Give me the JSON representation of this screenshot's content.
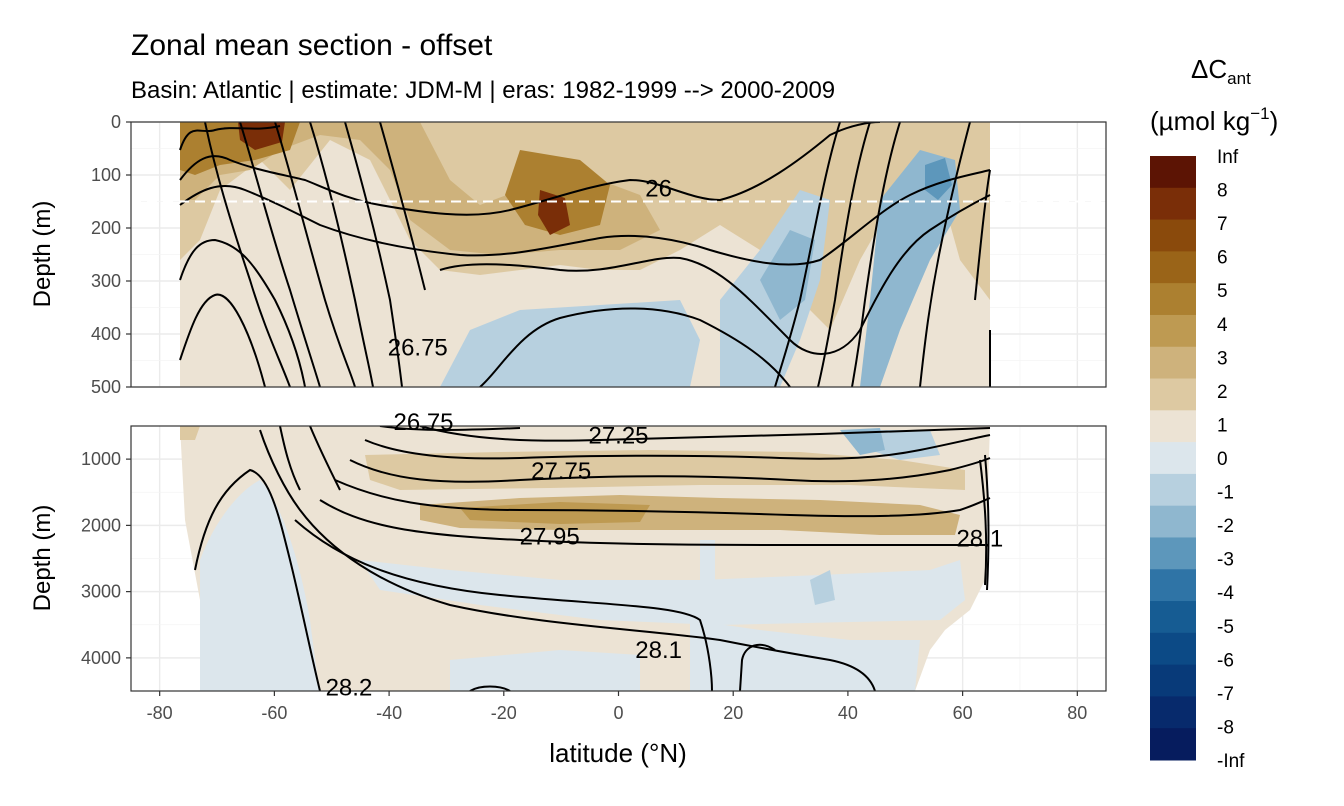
{
  "chart_data": {
    "type": "heatmap",
    "title": "Zonal mean section - offset",
    "subtitle": "Basin: Atlantic | estimate: JDM-M | eras: 1982-1999 --> 2000-2009",
    "xlabel": "latitude (°N)",
    "ylabel": "Depth (m)",
    "xlim": [
      -85,
      85
    ],
    "x_ticks": [
      "-80",
      "-60",
      "-40",
      "-20",
      "0",
      "20",
      "40",
      "60",
      "80"
    ],
    "x_tick_values": [
      -80,
      -60,
      -40,
      -20,
      0,
      20,
      40,
      60,
      80
    ],
    "grid": true,
    "panels": [
      {
        "name": "upper",
        "ylim": [
          500,
          0
        ],
        "y_ticks": [
          "0",
          "100",
          "200",
          "300",
          "400",
          "500"
        ],
        "y_tick_values": [
          0,
          100,
          200,
          300,
          400,
          500
        ],
        "reference_line_depth": 150
      },
      {
        "name": "lower",
        "ylim": [
          4500,
          500
        ],
        "y_ticks": [
          "1000",
          "2000",
          "3000",
          "4000"
        ],
        "y_tick_values": [
          1000,
          2000,
          3000,
          4000
        ]
      }
    ],
    "legend": {
      "title_main": "ΔC",
      "title_sub": "ant",
      "units_main": "(µmol kg",
      "units_sup": "−1",
      "units_close": ")",
      "placement": "right",
      "labels": [
        "Inf",
        "8",
        "7",
        "6",
        "5",
        "4",
        "3",
        "2",
        "1",
        "0",
        "-1",
        "-2",
        "-3",
        "-4",
        "-5",
        "-6",
        "-7",
        "-8",
        "-Inf"
      ],
      "colors": [
        "#5c1404",
        "#7a2e08",
        "#8a4a0c",
        "#9a6418",
        "#ac8030",
        "#be9a52",
        "#ceb27c",
        "#ddc9a2",
        "#ece3d4",
        "#dce6ec",
        "#b7d0df",
        "#8fb7cf",
        "#5d97bb",
        "#2f74a6",
        "#165c93",
        "#0c4a86",
        "#083a79",
        "#072a6c",
        "#061c5e"
      ]
    },
    "contour_labels": [
      {
        "panel": "upper",
        "text": "26",
        "lat": 7,
        "depth": 125
      },
      {
        "panel": "upper",
        "text": "26.75",
        "lat": -35,
        "depth": 425
      },
      {
        "panel": "lower",
        "text": "26.75",
        "lat": -34,
        "depth": 440
      },
      {
        "panel": "lower",
        "text": "27.25",
        "lat": 0,
        "depth": 640
      },
      {
        "panel": "lower",
        "text": "27.75",
        "lat": -10,
        "depth": 1180
      },
      {
        "panel": "lower",
        "text": "27.95",
        "lat": -12,
        "depth": 2170
      },
      {
        "panel": "lower",
        "text": "28.1",
        "lat": 7,
        "depth": 3880
      },
      {
        "panel": "lower",
        "text": "28.2",
        "lat": -47,
        "depth": 4450
      },
      {
        "panel": "lower",
        "text": "28.1",
        "lat": 63,
        "depth": 2200
      }
    ]
  }
}
